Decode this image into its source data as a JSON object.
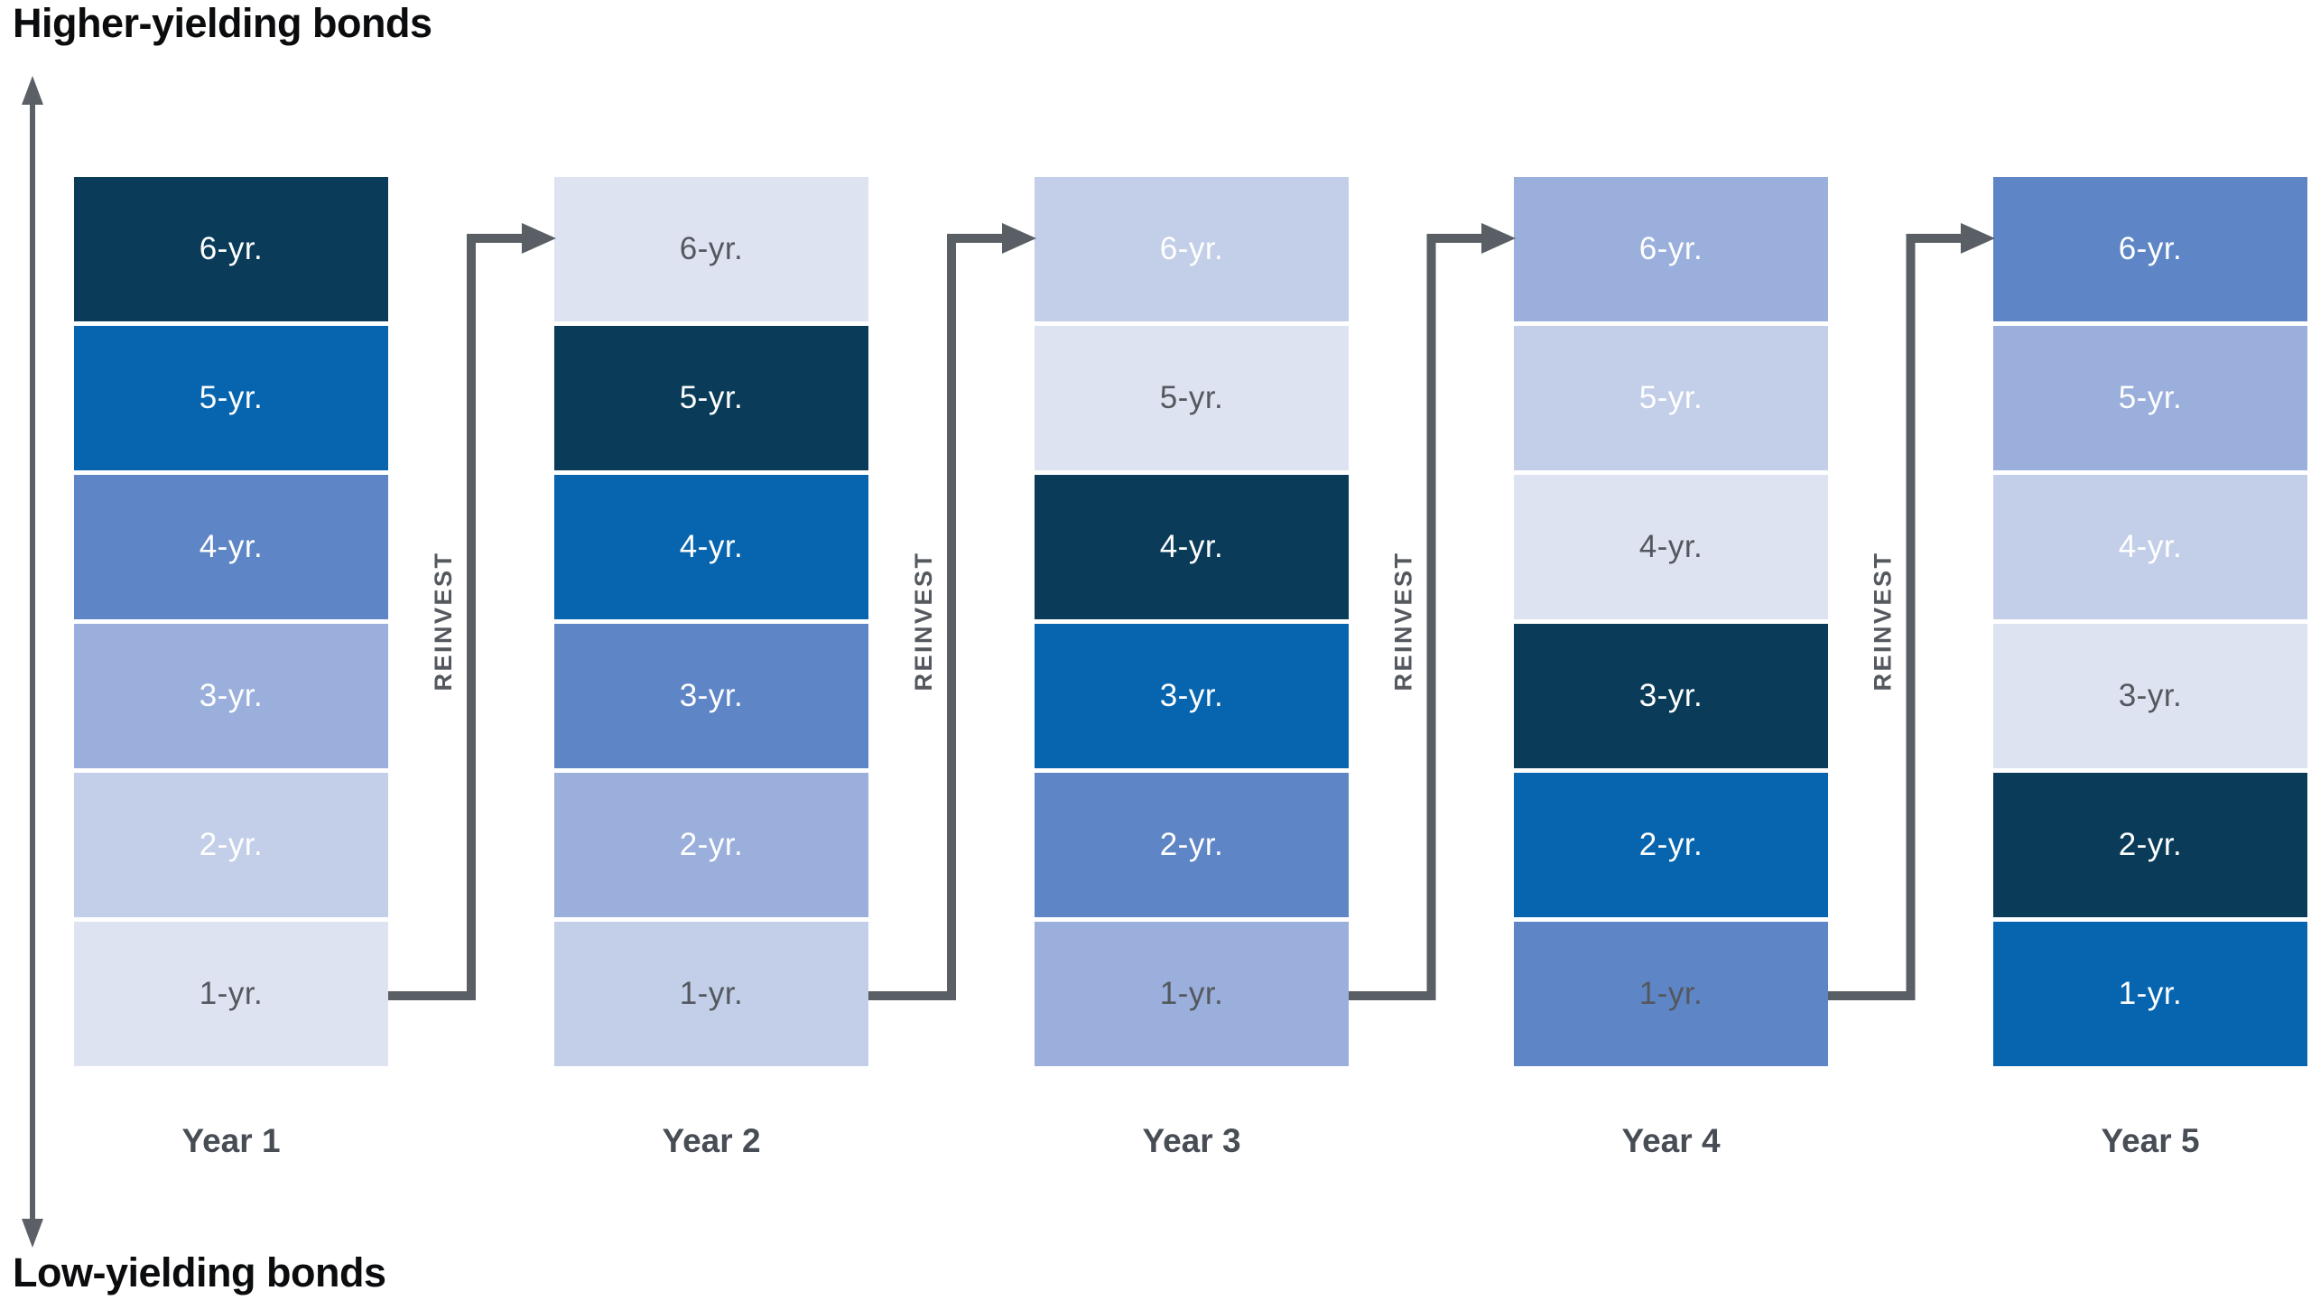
{
  "titles": {
    "top": "Higher-yielding bonds",
    "bottom": "Low-yielding bonds"
  },
  "reinvest_label": "REINVEST",
  "colors": {
    "c1": "#dee3f1",
    "c2": "#c3cfe8",
    "c3": "#9aafdb",
    "c4": "#5e86c7",
    "c5": "#0765af",
    "c6": "#0a3c5a",
    "text_light": "#ffffff",
    "text_dark": "#54585e",
    "arrow": "#5a5f66",
    "axis_arrow": "#5b6067",
    "year_label": "#484d55",
    "title_text": "#0b0c0e"
  },
  "ladder": {
    "columns": [
      {
        "year_label": "Year 1",
        "blocks": [
          {
            "label": "6-yr.",
            "color": "c6",
            "text": "text_light"
          },
          {
            "label": "5-yr.",
            "color": "c5",
            "text": "text_light"
          },
          {
            "label": "4-yr.",
            "color": "c4",
            "text": "text_light"
          },
          {
            "label": "3-yr.",
            "color": "c3",
            "text": "text_light"
          },
          {
            "label": "2-yr.",
            "color": "c2",
            "text": "text_light"
          },
          {
            "label": "1-yr.",
            "color": "c1",
            "text": "text_dark"
          }
        ]
      },
      {
        "year_label": "Year 2",
        "blocks": [
          {
            "label": "6-yr.",
            "color": "c1",
            "text": "text_dark"
          },
          {
            "label": "5-yr.",
            "color": "c6",
            "text": "text_light"
          },
          {
            "label": "4-yr.",
            "color": "c5",
            "text": "text_light"
          },
          {
            "label": "3-yr.",
            "color": "c4",
            "text": "text_light"
          },
          {
            "label": "2-yr.",
            "color": "c3",
            "text": "text_light"
          },
          {
            "label": "1-yr.",
            "color": "c2",
            "text": "text_dark"
          }
        ]
      },
      {
        "year_label": "Year 3",
        "blocks": [
          {
            "label": "6-yr.",
            "color": "c2",
            "text": "text_light"
          },
          {
            "label": "5-yr.",
            "color": "c1",
            "text": "text_dark"
          },
          {
            "label": "4-yr.",
            "color": "c6",
            "text": "text_light"
          },
          {
            "label": "3-yr.",
            "color": "c5",
            "text": "text_light"
          },
          {
            "label": "2-yr.",
            "color": "c4",
            "text": "text_light"
          },
          {
            "label": "1-yr.",
            "color": "c3",
            "text": "text_dark"
          }
        ]
      },
      {
        "year_label": "Year 4",
        "blocks": [
          {
            "label": "6-yr.",
            "color": "c3",
            "text": "text_light"
          },
          {
            "label": "5-yr.",
            "color": "c2",
            "text": "text_light"
          },
          {
            "label": "4-yr.",
            "color": "c1",
            "text": "text_dark"
          },
          {
            "label": "3-yr.",
            "color": "c6",
            "text": "text_light"
          },
          {
            "label": "2-yr.",
            "color": "c5",
            "text": "text_light"
          },
          {
            "label": "1-yr.",
            "color": "c4",
            "text": "text_dark"
          }
        ]
      },
      {
        "year_label": "Year 5",
        "blocks": [
          {
            "label": "6-yr.",
            "color": "c4",
            "text": "text_light"
          },
          {
            "label": "5-yr.",
            "color": "c3",
            "text": "text_light"
          },
          {
            "label": "4-yr.",
            "color": "c2",
            "text": "text_light"
          },
          {
            "label": "3-yr.",
            "color": "c1",
            "text": "text_dark"
          },
          {
            "label": "2-yr.",
            "color": "c6",
            "text": "text_light"
          },
          {
            "label": "1-yr.",
            "color": "c5",
            "text": "text_light"
          }
        ]
      }
    ]
  }
}
